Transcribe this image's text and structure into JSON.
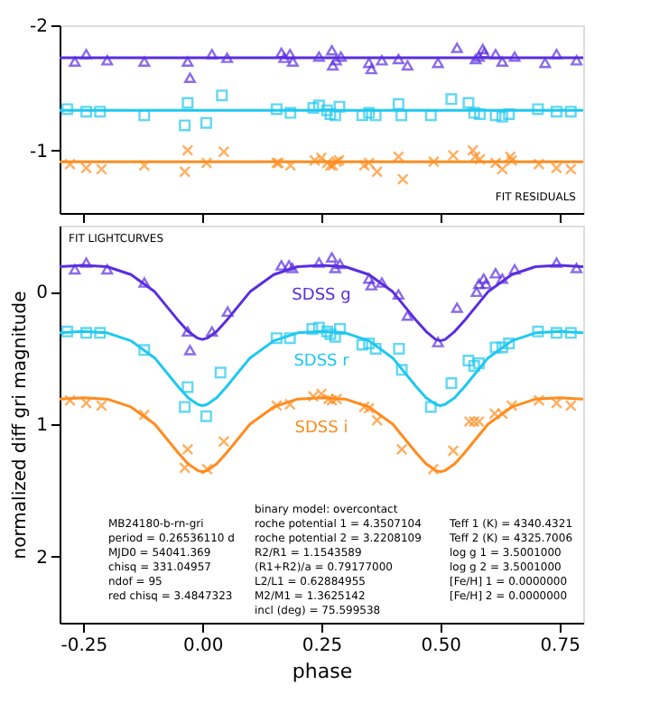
{
  "chart_data": [
    {
      "type": "scatter",
      "xlim": [
        -0.3,
        0.8
      ],
      "xticks": [
        -0.25,
        0,
        0.25,
        0.5,
        0.75
      ],
      "ylim": [
        -0.5,
        -2
      ],
      "yticks": [
        -2,
        -1
      ],
      "tick_labels": "y",
      "grid": false,
      "annotations": [
        "FIT RESIDUALS"
      ],
      "series": [
        {
          "color": "#5a2de0",
          "marker": "triangle",
          "x": [
            -0.268,
            -0.244,
            -0.2,
            -0.122,
            -0.031,
            -0.026,
            0.02,
            0.052,
            0.166,
            0.172,
            0.184,
            0.19,
            0.245,
            0.272,
            0.274,
            0.281,
            0.291,
            0.35,
            0.355,
            0.377,
            0.412,
            0.431,
            0.495,
            0.535,
            0.574,
            0.581,
            0.589,
            0.592,
            0.616,
            0.63,
            0.656,
            0.72,
            0.744,
            0.786
          ],
          "values": [
            -1.71,
            -1.77,
            -1.72,
            -1.71,
            -1.71,
            -1.58,
            -1.77,
            -1.74,
            -1.78,
            -1.74,
            -1.77,
            -1.71,
            -1.75,
            -1.8,
            -1.68,
            -1.72,
            -1.75,
            -1.7,
            -1.65,
            -1.72,
            -1.73,
            -1.68,
            -1.7,
            -1.82,
            -1.73,
            -1.75,
            -1.81,
            -1.78,
            -1.77,
            -1.71,
            -1.75,
            -1.7,
            -1.77,
            -1.72
          ]
        },
        {
          "color": "#1ec8f0",
          "marker": "square",
          "x": [
            -0.284,
            -0.244,
            -0.215,
            -0.122,
            -0.037,
            -0.031,
            0.008,
            0.041,
            0.156,
            0.185,
            0.233,
            0.245,
            0.262,
            0.269,
            0.279,
            0.288,
            0.336,
            0.35,
            0.364,
            0.412,
            0.418,
            0.48,
            0.523,
            0.559,
            0.571,
            0.583,
            0.616,
            0.63,
            0.644,
            0.705,
            0.744,
            0.774
          ],
          "values": [
            -1.33,
            -1.31,
            -1.31,
            -1.28,
            -1.2,
            -1.38,
            -1.22,
            -1.44,
            -1.33,
            -1.3,
            -1.34,
            -1.36,
            -1.32,
            -1.29,
            -1.28,
            -1.35,
            -1.28,
            -1.3,
            -1.28,
            -1.37,
            -1.28,
            -1.28,
            -1.41,
            -1.38,
            -1.3,
            -1.29,
            -1.28,
            -1.27,
            -1.29,
            -1.33,
            -1.31,
            -1.31
          ]
        },
        {
          "color": "#ff8c1e",
          "marker": "cross",
          "x": [
            -0.278,
            -0.244,
            -0.212,
            -0.122,
            -0.037,
            -0.031,
            0.009,
            0.045,
            0.156,
            0.16,
            0.185,
            0.236,
            0.25,
            0.262,
            0.269,
            0.274,
            0.282,
            0.287,
            0.34,
            0.35,
            0.367,
            0.412,
            0.421,
            0.486,
            0.527,
            0.568,
            0.573,
            0.583,
            0.616,
            0.63,
            0.647,
            0.65,
            0.707,
            0.744,
            0.774
          ],
          "values": [
            -0.89,
            -0.86,
            -0.85,
            -0.88,
            -0.83,
            -1.0,
            -0.9,
            -0.99,
            -0.9,
            -0.9,
            -0.88,
            -0.92,
            -0.94,
            -0.9,
            -0.88,
            -0.88,
            -0.91,
            -0.92,
            -0.88,
            -0.9,
            -0.83,
            -0.95,
            -0.77,
            -0.91,
            -0.96,
            -1.0,
            -0.95,
            -0.93,
            -0.9,
            -0.85,
            -0.95,
            -0.92,
            -0.89,
            -0.86,
            -0.85
          ]
        },
        {
          "type": "line",
          "color": "#5a2de0",
          "x": [
            -0.3,
            0.8
          ],
          "values": [
            -1.74,
            -1.74
          ]
        },
        {
          "type": "line",
          "color": "#1ec8f0",
          "x": [
            -0.3,
            0.8
          ],
          "values": [
            -1.32,
            -1.32
          ]
        },
        {
          "type": "line",
          "color": "#ff8c1e",
          "x": [
            -0.3,
            0.8
          ],
          "values": [
            -0.91,
            -0.91
          ]
        }
      ]
    },
    {
      "type": "scatter",
      "xlabel": "phase",
      "ylabel": "normalized diff gri magnitude",
      "xlim": [
        -0.3,
        0.8
      ],
      "xticks": [
        -0.25,
        {
          "value": 0,
          "label": "0.00"
        },
        0.25,
        {
          "value": 0.5,
          "label": "0.50"
        },
        0.75
      ],
      "ylim": [
        2.5,
        -0.5
      ],
      "yticks": [
        0,
        1,
        2
      ],
      "grid": false,
      "annotations": [
        "FIT LIGHTCURVES",
        "MB24180-b-rn-gri\nperiod = 0.26536110 d\nMJD0 = 54041.369\nchisq = 331.04957\nndof = 95\nred chisq = 3.4847323",
        "binary model: overcontact\nroche potential 1 = 4.3507104\nroche potential 2 = 3.2208109\nR2/R1 = 1.1543589\n(R1+R2)/a = 0.79177000\nL2/L1 = 0.62884955\nM2/M1 = 1.3625142\nincl (deg) = 75.599538",
        "Teff 1 (K) = 4340.4321\nTeff 2 (K) = 4325.7006\nlog g 1 = 3.5001000\nlog g 2 = 3.5001000\n[Fe/H] 1 = 0.0000000\n[Fe/H] 2 = 0.0000000"
      ],
      "series": [
        {
          "color": "#5a2de0",
          "marker": "triangle",
          "x": [
            -0.268,
            -0.244,
            -0.2,
            -0.122,
            -0.031,
            -0.026,
            0.02,
            0.053,
            0.166,
            0.182,
            0.189,
            0.245,
            0.272,
            0.279,
            0.289,
            0.35,
            0.355,
            0.377,
            0.412,
            0.431,
            0.495,
            0.535,
            0.576,
            0.581,
            0.591,
            0.596,
            0.616,
            0.63,
            0.656,
            0.744,
            0.786
          ],
          "values": [
            -0.17,
            -0.22,
            -0.17,
            -0.07,
            0.3,
            0.44,
            0.3,
            0.15,
            -0.2,
            -0.2,
            -0.18,
            -0.22,
            -0.26,
            -0.18,
            -0.21,
            -0.1,
            -0.05,
            -0.07,
            0.02,
            0.18,
            0.38,
            0.12,
            0.0,
            -0.06,
            -0.1,
            -0.06,
            -0.14,
            -0.1,
            -0.17,
            -0.22,
            -0.18
          ]
        },
        {
          "color": "#1ec8f0",
          "marker": "square",
          "x": [
            -0.284,
            -0.244,
            -0.215,
            -0.122,
            -0.031,
            -0.037,
            0.008,
            0.038,
            0.156,
            0.184,
            0.231,
            0.245,
            0.262,
            0.269,
            0.279,
            0.289,
            0.336,
            0.35,
            0.364,
            0.413,
            0.419,
            0.48,
            0.523,
            0.559,
            0.571,
            0.581,
            0.616,
            0.63,
            0.644,
            0.705,
            0.744,
            0.774
          ],
          "values": [
            0.3,
            0.31,
            0.31,
            0.44,
            0.72,
            0.87,
            0.94,
            0.61,
            0.35,
            0.35,
            0.28,
            0.27,
            0.3,
            0.32,
            0.34,
            0.28,
            0.4,
            0.39,
            0.43,
            0.43,
            0.59,
            0.87,
            0.69,
            0.52,
            0.56,
            0.54,
            0.42,
            0.42,
            0.39,
            0.3,
            0.31,
            0.31
          ]
        },
        {
          "color": "#ff8c1e",
          "marker": "cross",
          "x": [
            -0.278,
            -0.244,
            -0.212,
            -0.122,
            -0.037,
            -0.031,
            0.01,
            0.045,
            0.156,
            0.184,
            0.233,
            0.25,
            0.265,
            0.272,
            0.282,
            0.34,
            0.35,
            0.367,
            0.419,
            0.485,
            0.527,
            0.561,
            0.571,
            0.581,
            0.614,
            0.63,
            0.65,
            0.707,
            0.744,
            0.774
          ],
          "values": [
            0.82,
            0.84,
            0.86,
            0.93,
            1.33,
            1.19,
            1.34,
            1.13,
            0.86,
            0.85,
            0.79,
            0.77,
            0.81,
            0.82,
            0.81,
            0.87,
            0.88,
            0.97,
            1.19,
            1.34,
            1.2,
            0.98,
            0.98,
            0.98,
            0.92,
            0.92,
            0.86,
            0.82,
            0.84,
            0.86
          ]
        },
        {
          "type": "line",
          "name": "SDSS g",
          "color": "#5a2de0",
          "x": [
            -0.3,
            -0.25,
            -0.2,
            -0.15,
            -0.1,
            -0.05,
            -0.03,
            -0.01,
            0,
            0.01,
            0.03,
            0.05,
            0.1,
            0.15,
            0.2,
            0.25,
            0.3,
            0.35,
            0.4,
            0.45,
            0.47,
            0.49,
            0.5,
            0.51,
            0.53,
            0.55,
            0.6,
            0.65,
            0.7,
            0.75,
            0.8
          ],
          "values": [
            -0.19,
            -0.2,
            -0.19,
            -0.13,
            0.0,
            0.22,
            0.3,
            0.35,
            0.36,
            0.35,
            0.3,
            0.22,
            0.0,
            -0.13,
            -0.19,
            -0.2,
            -0.19,
            -0.13,
            0.0,
            0.22,
            0.3,
            0.36,
            0.37,
            0.36,
            0.3,
            0.22,
            0.0,
            -0.13,
            -0.19,
            -0.2,
            -0.19
          ]
        },
        {
          "type": "line",
          "name": "SDSS r",
          "color": "#1ec8f0",
          "x": [
            -0.3,
            -0.25,
            -0.2,
            -0.15,
            -0.1,
            -0.05,
            -0.03,
            -0.01,
            0,
            0.01,
            0.03,
            0.05,
            0.1,
            0.15,
            0.2,
            0.25,
            0.3,
            0.35,
            0.4,
            0.45,
            0.47,
            0.49,
            0.5,
            0.51,
            0.53,
            0.55,
            0.6,
            0.65,
            0.7,
            0.75,
            0.8
          ],
          "values": [
            0.31,
            0.3,
            0.31,
            0.37,
            0.5,
            0.72,
            0.8,
            0.85,
            0.86,
            0.85,
            0.8,
            0.72,
            0.5,
            0.37,
            0.31,
            0.3,
            0.31,
            0.37,
            0.5,
            0.72,
            0.8,
            0.85,
            0.86,
            0.85,
            0.8,
            0.72,
            0.5,
            0.37,
            0.31,
            0.3,
            0.31
          ]
        },
        {
          "type": "line",
          "name": "SDSS i",
          "color": "#ff8c1e",
          "x": [
            -0.3,
            -0.25,
            -0.2,
            -0.15,
            -0.1,
            -0.05,
            -0.03,
            -0.01,
            0,
            0.01,
            0.03,
            0.05,
            0.1,
            0.15,
            0.2,
            0.25,
            0.3,
            0.35,
            0.4,
            0.45,
            0.47,
            0.49,
            0.5,
            0.51,
            0.53,
            0.55,
            0.6,
            0.65,
            0.7,
            0.75,
            0.8
          ],
          "values": [
            0.81,
            0.8,
            0.81,
            0.87,
            1.0,
            1.22,
            1.3,
            1.35,
            1.36,
            1.35,
            1.3,
            1.22,
            1.0,
            0.87,
            0.81,
            0.8,
            0.81,
            0.87,
            1.0,
            1.22,
            1.3,
            1.35,
            1.36,
            1.35,
            1.3,
            1.22,
            1.0,
            0.87,
            0.81,
            0.8,
            0.81
          ]
        }
      ]
    }
  ]
}
